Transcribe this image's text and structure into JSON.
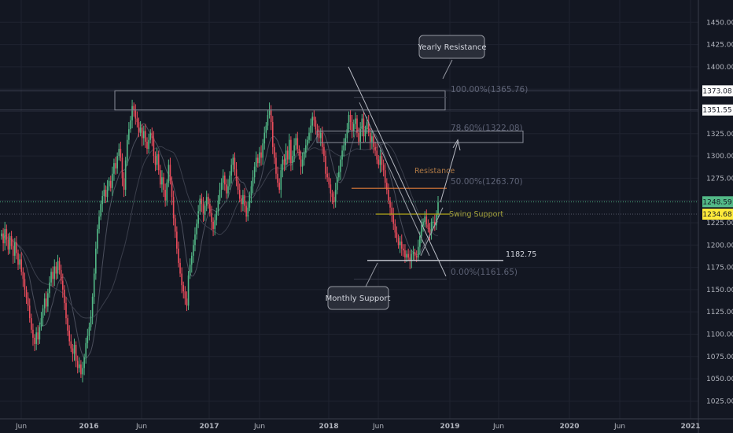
{
  "chart_data": {
    "type": "candlestick",
    "ylim": [
      1005,
      1475
    ],
    "y_ticks": [
      1025,
      1050,
      1075,
      1100,
      1125,
      1150,
      1175,
      1200,
      1225,
      1250,
      1275,
      1300,
      1325,
      1350,
      1375,
      1400,
      1425,
      1450
    ],
    "x_ticks": [
      {
        "label": "Jun",
        "bold": false
      },
      {
        "label": "2016",
        "bold": true
      },
      {
        "label": "Jun",
        "bold": false
      },
      {
        "label": "2017",
        "bold": true
      },
      {
        "label": "Jun",
        "bold": false
      },
      {
        "label": "2018",
        "bold": true
      },
      {
        "label": "Jun",
        "bold": false
      },
      {
        "label": "2019",
        "bold": true
      },
      {
        "label": "Jun",
        "bold": false
      },
      {
        "label": "2020",
        "bold": true
      },
      {
        "label": "Jun",
        "bold": false
      },
      {
        "label": "2021",
        "bold": true
      }
    ],
    "price_badges": [
      {
        "value": "1373.08",
        "bg": "#ffffff",
        "fg": "#131722"
      },
      {
        "value": "1351.55",
        "bg": "#ffffff",
        "fg": "#131722"
      },
      {
        "value": "1248.59",
        "bg": "#53b987",
        "fg": "#131722"
      },
      {
        "value": "1234.68",
        "bg": "#ffeb3b",
        "fg": "#131722"
      }
    ],
    "closes": [
      1213,
      1202,
      1218,
      1206,
      1195,
      1210,
      1199,
      1188,
      1203,
      1191,
      1178,
      1184,
      1170,
      1162,
      1150,
      1141,
      1132,
      1118,
      1105,
      1096,
      1089,
      1102,
      1094,
      1108,
      1118,
      1129,
      1140,
      1131,
      1146,
      1158,
      1170,
      1162,
      1176,
      1168,
      1182,
      1172,
      1160,
      1150,
      1135,
      1118,
      1104,
      1092,
      1084,
      1078,
      1088,
      1070,
      1062,
      1066,
      1055,
      1062,
      1074,
      1090,
      1098,
      1108,
      1120,
      1142,
      1168,
      1196,
      1218,
      1232,
      1246,
      1255,
      1262,
      1254,
      1266,
      1272,
      1264,
      1280,
      1292,
      1286,
      1300,
      1308,
      1298,
      1275,
      1262,
      1295,
      1318,
      1330,
      1340,
      1356,
      1352,
      1342,
      1338,
      1326,
      1332,
      1320,
      1328,
      1316,
      1308,
      1318,
      1326,
      1320,
      1300,
      1290,
      1302,
      1284,
      1268,
      1276,
      1262,
      1250,
      1270,
      1290,
      1272,
      1254,
      1230,
      1215,
      1196,
      1180,
      1168,
      1155,
      1148,
      1140,
      1132,
      1166,
      1178,
      1188,
      1200,
      1212,
      1224,
      1238,
      1252,
      1246,
      1234,
      1244,
      1254,
      1246,
      1236,
      1226,
      1218,
      1228,
      1238,
      1250,
      1262,
      1270,
      1278,
      1268,
      1258,
      1266,
      1278,
      1290,
      1298,
      1285,
      1272,
      1262,
      1252,
      1246,
      1256,
      1244,
      1232,
      1242,
      1256,
      1266,
      1276,
      1288,
      1298,
      1292,
      1304,
      1298,
      1314,
      1326,
      1334,
      1346,
      1352,
      1338,
      1310,
      1298,
      1280,
      1270,
      1262,
      1284,
      1296,
      1290,
      1306,
      1296,
      1318,
      1292,
      1300,
      1312,
      1320,
      1308,
      1300,
      1288,
      1296,
      1304,
      1312,
      1318,
      1326,
      1334,
      1344,
      1340,
      1330,
      1326,
      1320,
      1326,
      1310,
      1300,
      1280,
      1276,
      1268,
      1258,
      1254,
      1248,
      1262,
      1276,
      1282,
      1296,
      1306,
      1312,
      1320,
      1330,
      1346,
      1338,
      1328,
      1336,
      1342,
      1326,
      1316,
      1330,
      1342,
      1322,
      1330,
      1338,
      1326,
      1316,
      1322,
      1310,
      1306,
      1296,
      1290,
      1300,
      1290,
      1284,
      1270,
      1262,
      1250,
      1242,
      1234,
      1224,
      1214,
      1208,
      1200,
      1204,
      1196,
      1194,
      1186,
      1190,
      1186,
      1182,
      1190,
      1192,
      1188,
      1186,
      1198,
      1210,
      1222,
      1226,
      1232,
      1224,
      1218,
      1214,
      1226,
      1226,
      1222,
      1234,
      1248
    ]
  },
  "annotations": {
    "yearly_resistance": "Yearly Resistance",
    "monthly_support": "Monthly Support",
    "resistance": "Resistance",
    "swing_support": "Swing Support",
    "support_level": "1182.75",
    "fib_100": "100.00%(1365.76)",
    "fib_786": "78.60%(1322.08)",
    "fib_50": "50.00%(1263.70)",
    "fib_0": "0.00%(1161.65)"
  },
  "colors": {
    "background": "#131722",
    "up": "#53b987",
    "down": "#eb4d5c",
    "resistance_line": "#e07b39",
    "swing_line": "#b5a91a",
    "grid": "#1f2330"
  }
}
